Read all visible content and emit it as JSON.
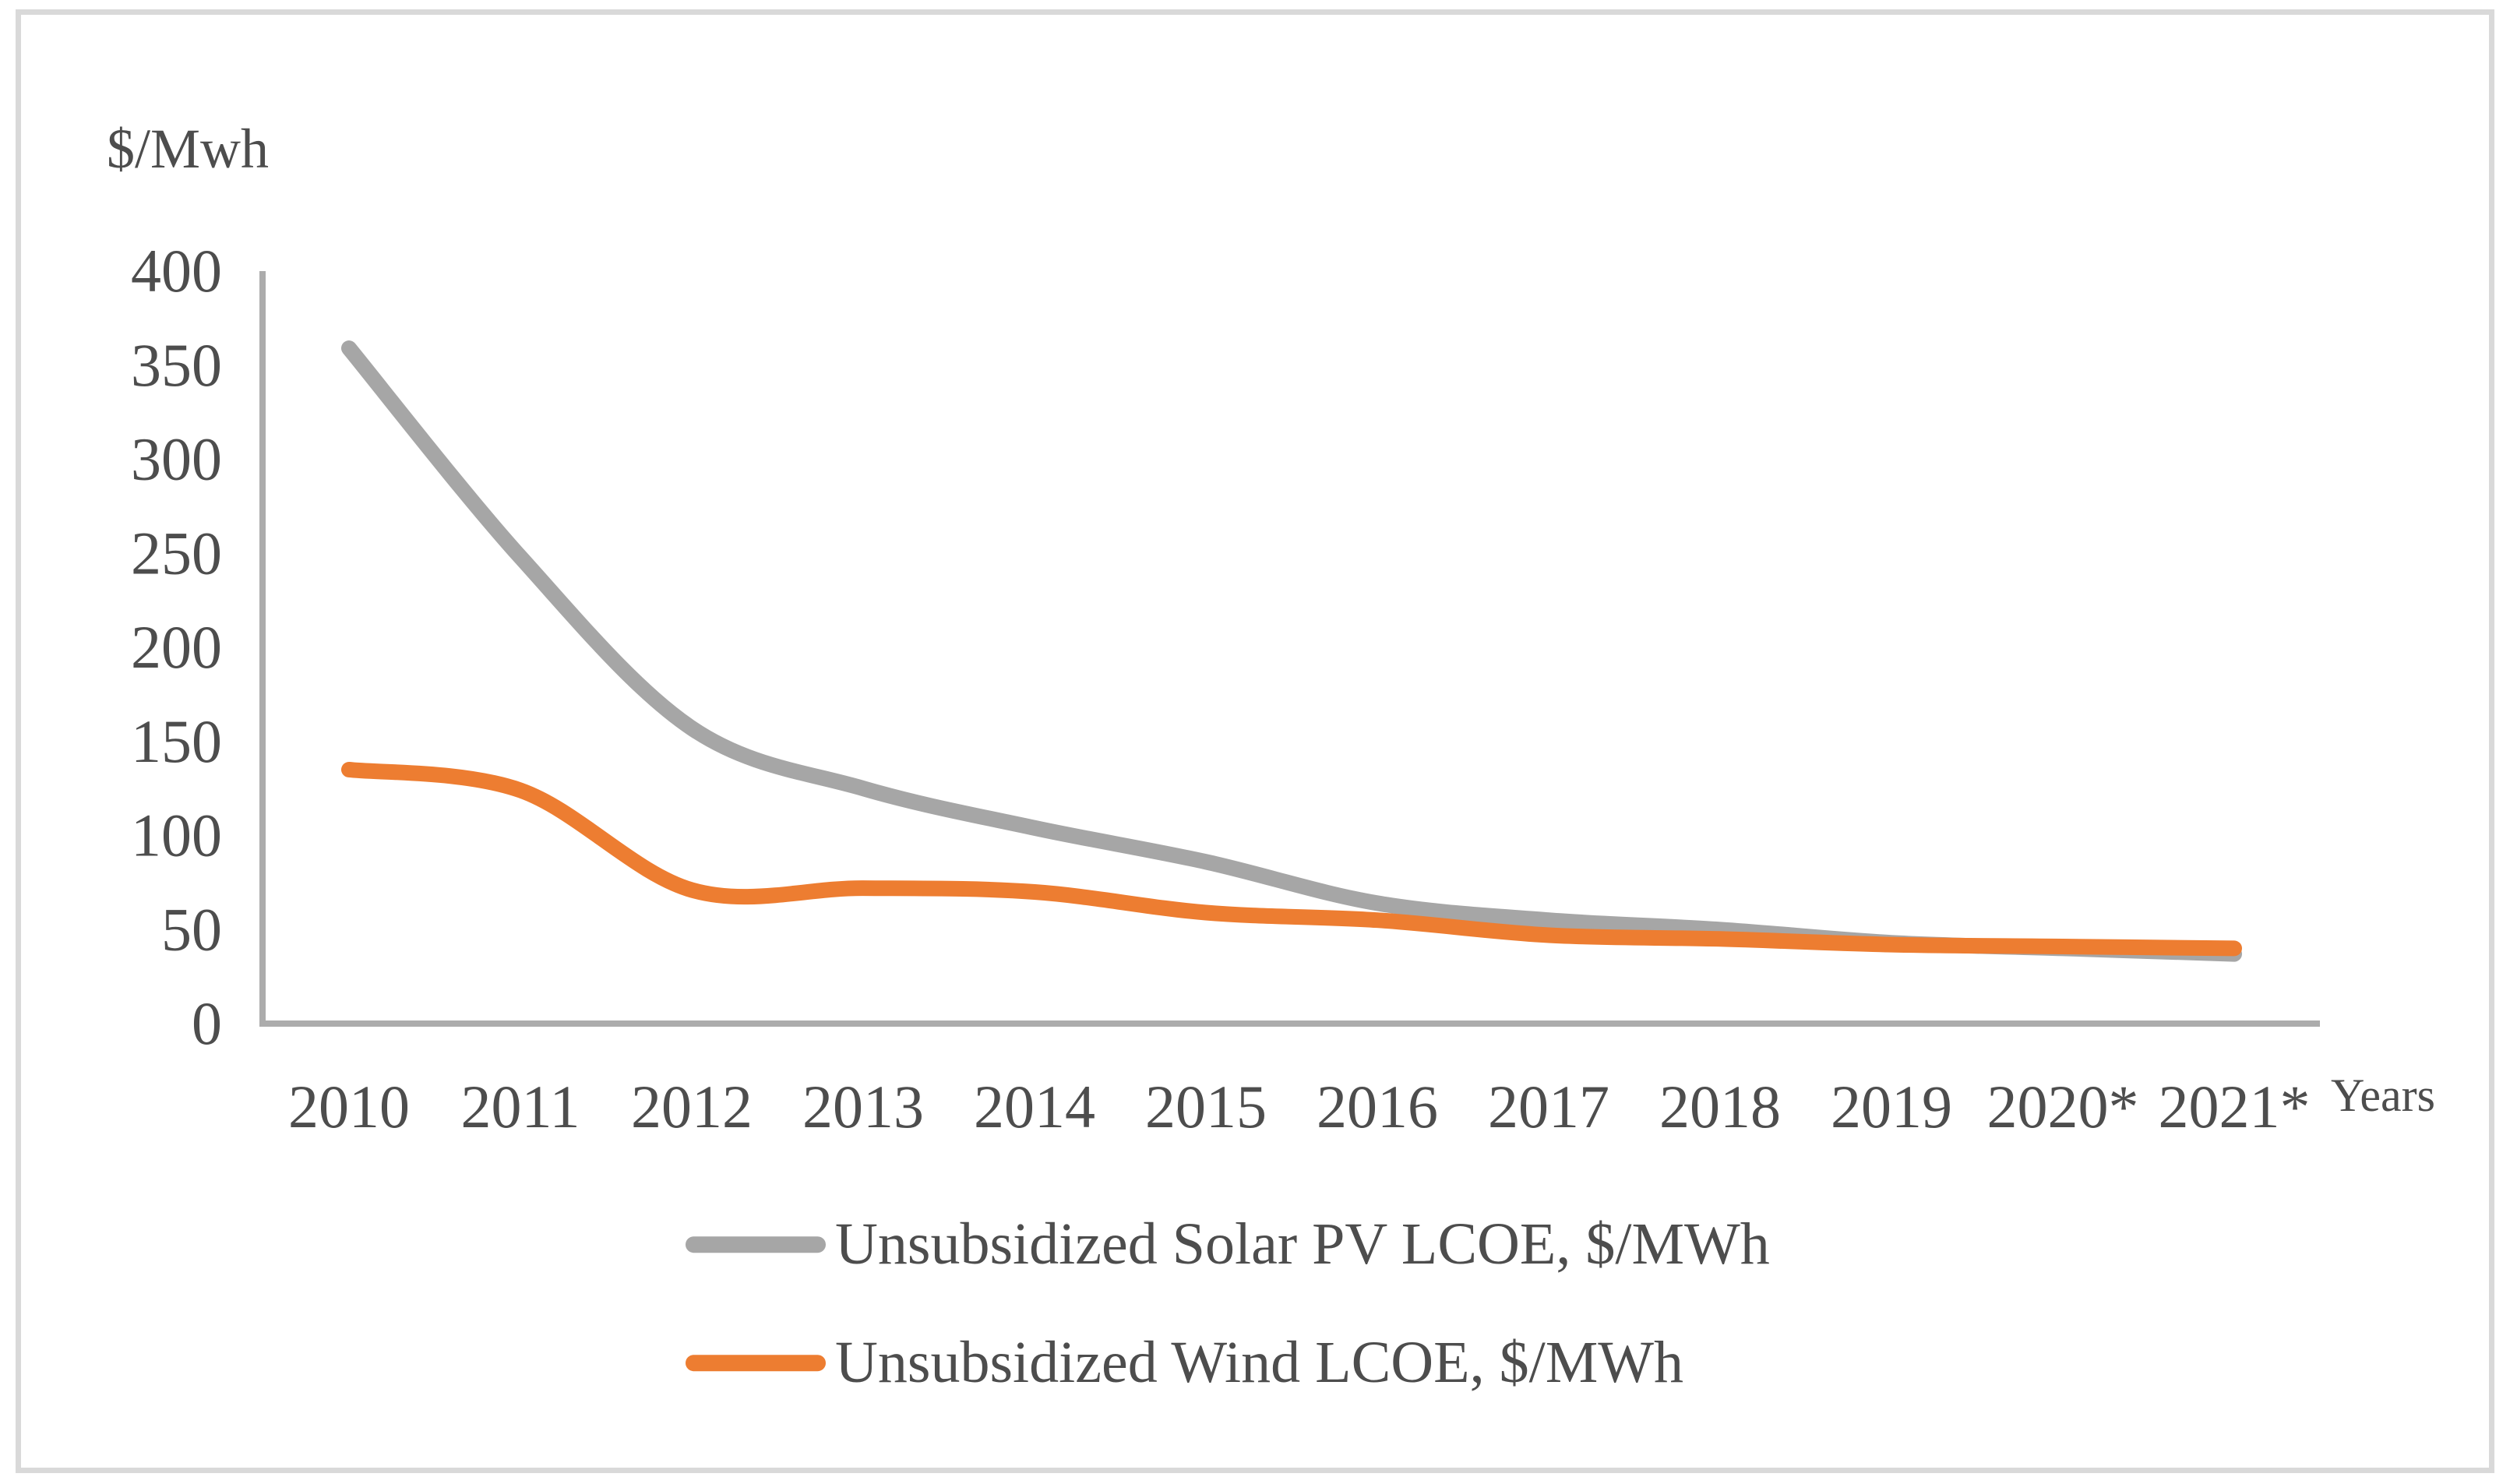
{
  "figure": {
    "y_axis_title": "$/Mwh",
    "x_axis_title": "Years"
  },
  "chart_data": {
    "type": "line",
    "title": "",
    "xlabel": "Years",
    "ylabel": "$/Mwh",
    "categories": [
      "2010",
      "2011",
      "2012",
      "2013",
      "2014",
      "2015",
      "2016",
      "2017",
      "2018",
      "2019",
      "2020*",
      "2021*"
    ],
    "y_ticks": [
      0,
      50,
      100,
      150,
      200,
      250,
      300,
      350,
      400
    ],
    "ylim": [
      0,
      400
    ],
    "grid": false,
    "smoothed": true,
    "legend_position": "bottom",
    "series": [
      {
        "name": "Unsubsidized Solar PV LCOE, $/MWh",
        "color": "#a6a6a6",
        "values": [
          359,
          248,
          157,
          125,
          104,
          86,
          64,
          55,
          50,
          43,
          40,
          37
        ]
      },
      {
        "name": "Unsubsidized Wind LCOE, $/MWh",
        "color": "#ed7d31",
        "values": [
          135,
          124,
          71,
          72,
          70,
          59,
          55,
          47,
          45,
          42,
          41,
          40
        ]
      }
    ]
  },
  "colors": {
    "text": "#4d4d4d",
    "axis": "#acacac",
    "frame": "#d9d9d9",
    "background": "#ffffff"
  }
}
